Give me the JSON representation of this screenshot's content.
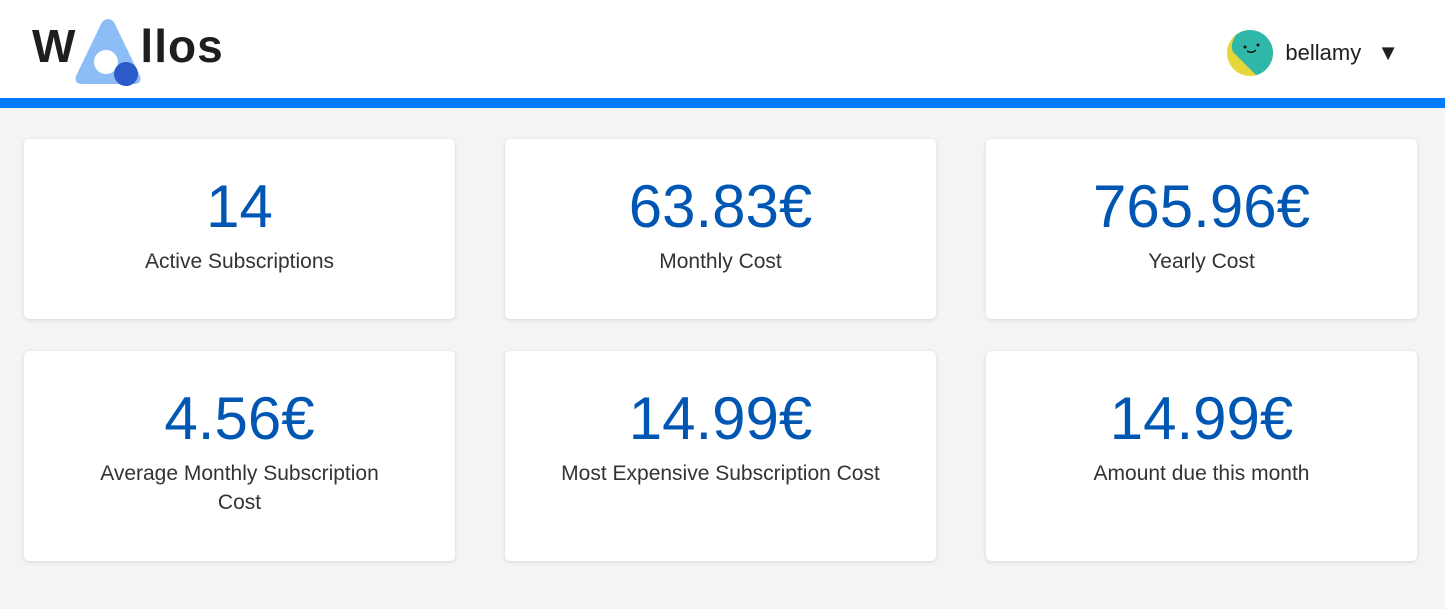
{
  "header": {
    "brand": {
      "first": "W",
      "rest": "llos",
      "full": "Wallos"
    },
    "user": {
      "name": "bellamy",
      "avatar_icon": "smiley-avatar-icon",
      "dropdown_icon": "triangle-down"
    }
  },
  "colors": {
    "accent": "#007bff",
    "value": "#0056b3",
    "logo_light": "#8dbdf7",
    "logo_dark": "#2a5bc8"
  },
  "stats": [
    {
      "value": "14",
      "label": "Active Subscriptions"
    },
    {
      "value": "63.83€",
      "label": "Monthly Cost"
    },
    {
      "value": "765.96€",
      "label": "Yearly Cost"
    },
    {
      "value": "4.56€",
      "label": "Average Monthly Subscription Cost"
    },
    {
      "value": "14.99€",
      "label": "Most Expensive Subscription Cost"
    },
    {
      "value": "14.99€",
      "label": "Amount due this month"
    }
  ]
}
